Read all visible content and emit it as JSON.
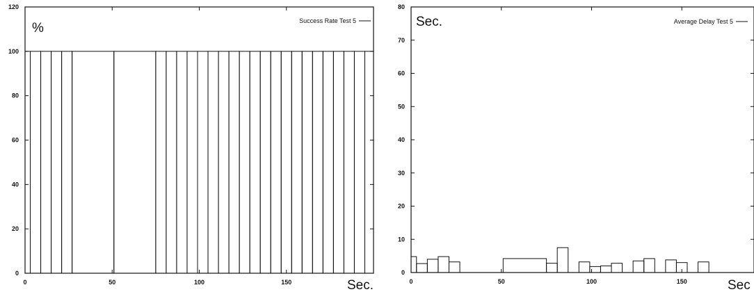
{
  "chart_data": [
    {
      "type": "bar",
      "series": [
        {
          "name": "Success Rate Test 5"
        }
      ],
      "ylabel": "%",
      "xlabel": "Sec.",
      "xlim": [
        0,
        200
      ],
      "ylim": [
        0,
        120
      ],
      "xticks": [
        0,
        50,
        100,
        150
      ],
      "yticks": [
        0,
        20,
        40,
        60,
        80,
        100,
        120
      ],
      "bars": [
        {
          "x0": 0,
          "x1": 3,
          "y": 100
        },
        {
          "x0": 3,
          "x1": 9,
          "y": 100
        },
        {
          "x0": 9,
          "x1": 15,
          "y": 100
        },
        {
          "x0": 15,
          "x1": 21,
          "y": 100
        },
        {
          "x0": 21,
          "x1": 27,
          "y": 100
        },
        {
          "x0": 27,
          "x1": 51,
          "y": 100
        },
        {
          "x0": 51,
          "x1": 75,
          "y": 100
        },
        {
          "x0": 75,
          "x1": 81,
          "y": 100
        },
        {
          "x0": 81,
          "x1": 87,
          "y": 100
        },
        {
          "x0": 87,
          "x1": 93,
          "y": 100
        },
        {
          "x0": 93,
          "x1": 99,
          "y": 100
        },
        {
          "x0": 99,
          "x1": 105,
          "y": 100
        },
        {
          "x0": 105,
          "x1": 111,
          "y": 100
        },
        {
          "x0": 111,
          "x1": 117,
          "y": 100
        },
        {
          "x0": 117,
          "x1": 123,
          "y": 100
        },
        {
          "x0": 123,
          "x1": 129,
          "y": 100
        },
        {
          "x0": 129,
          "x1": 135,
          "y": 100
        },
        {
          "x0": 135,
          "x1": 141,
          "y": 100
        },
        {
          "x0": 141,
          "x1": 147,
          "y": 100
        },
        {
          "x0": 147,
          "x1": 153,
          "y": 100
        },
        {
          "x0": 153,
          "x1": 159,
          "y": 100
        },
        {
          "x0": 159,
          "x1": 165,
          "y": 100
        },
        {
          "x0": 165,
          "x1": 171,
          "y": 100
        },
        {
          "x0": 171,
          "x1": 177,
          "y": 100
        },
        {
          "x0": 177,
          "x1": 183,
          "y": 100
        },
        {
          "x0": 183,
          "x1": 189,
          "y": 100
        },
        {
          "x0": 189,
          "x1": 195,
          "y": 100
        },
        {
          "x0": 195,
          "x1": 200,
          "y": 100
        }
      ]
    },
    {
      "type": "bar",
      "series": [
        {
          "name": "Average Delay Test 5"
        }
      ],
      "ylabel": "Sec.",
      "xlabel": "Sec",
      "xlim": [
        0,
        190
      ],
      "ylim": [
        0,
        80
      ],
      "xticks": [
        0,
        50,
        100,
        150
      ],
      "yticks": [
        0,
        10,
        20,
        30,
        40,
        50,
        60,
        70,
        80
      ],
      "bars": [
        {
          "x0": 0,
          "x1": 3,
          "y": 4.8
        },
        {
          "x0": 3,
          "x1": 9,
          "y": 2.7
        },
        {
          "x0": 9,
          "x1": 15,
          "y": 4.0
        },
        {
          "x0": 15,
          "x1": 21,
          "y": 4.8
        },
        {
          "x0": 21,
          "x1": 27,
          "y": 3.2
        },
        {
          "x0": 27,
          "x1": 51,
          "y": 0
        },
        {
          "x0": 51,
          "x1": 75,
          "y": 4.2
        },
        {
          "x0": 75,
          "x1": 81,
          "y": 2.8
        },
        {
          "x0": 81,
          "x1": 87,
          "y": 7.5
        },
        {
          "x0": 87,
          "x1": 93,
          "y": 0
        },
        {
          "x0": 93,
          "x1": 99,
          "y": 3.2
        },
        {
          "x0": 99,
          "x1": 105,
          "y": 1.8
        },
        {
          "x0": 105,
          "x1": 111,
          "y": 2.0
        },
        {
          "x0": 111,
          "x1": 117,
          "y": 2.8
        },
        {
          "x0": 117,
          "x1": 123,
          "y": 0
        },
        {
          "x0": 123,
          "x1": 129,
          "y": 3.5
        },
        {
          "x0": 129,
          "x1": 135,
          "y": 4.2
        },
        {
          "x0": 135,
          "x1": 141,
          "y": 0
        },
        {
          "x0": 141,
          "x1": 147,
          "y": 3.8
        },
        {
          "x0": 147,
          "x1": 153,
          "y": 3.0
        },
        {
          "x0": 153,
          "x1": 159,
          "y": 0
        },
        {
          "x0": 159,
          "x1": 165,
          "y": 3.2
        },
        {
          "x0": 165,
          "x1": 190,
          "y": 0
        }
      ]
    }
  ]
}
